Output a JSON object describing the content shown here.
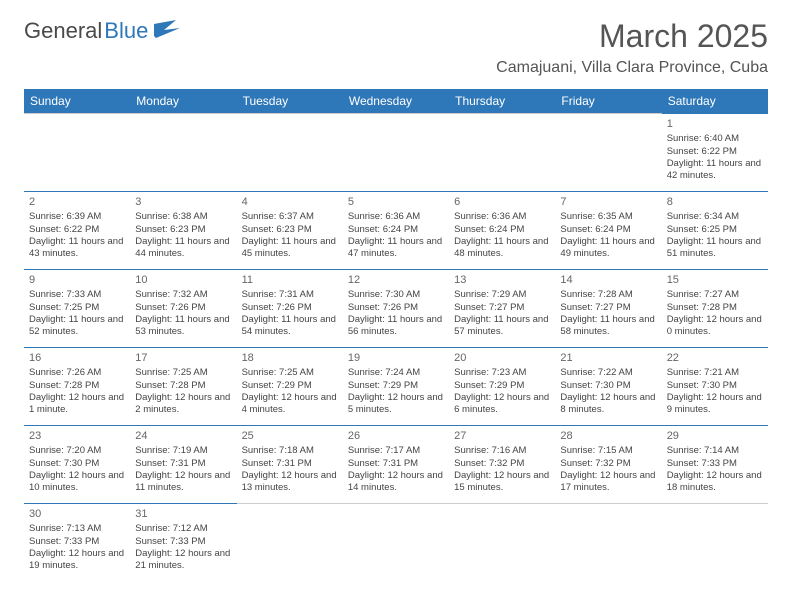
{
  "logo": {
    "text1": "General",
    "text2": "Blue"
  },
  "title": "March 2025",
  "location": "Camajuani, Villa Clara Province, Cuba",
  "dow": [
    "Sunday",
    "Monday",
    "Tuesday",
    "Wednesday",
    "Thursday",
    "Friday",
    "Saturday"
  ],
  "colors": {
    "header_bg": "#2e77b8",
    "header_text": "#ffffff",
    "border": "#2e77b8"
  },
  "weeks": [
    [
      null,
      null,
      null,
      null,
      null,
      null,
      {
        "n": "1",
        "sr": "Sunrise: 6:40 AM",
        "ss": "Sunset: 6:22 PM",
        "dl": "Daylight: 11 hours and 42 minutes."
      }
    ],
    [
      {
        "n": "2",
        "sr": "Sunrise: 6:39 AM",
        "ss": "Sunset: 6:22 PM",
        "dl": "Daylight: 11 hours and 43 minutes."
      },
      {
        "n": "3",
        "sr": "Sunrise: 6:38 AM",
        "ss": "Sunset: 6:23 PM",
        "dl": "Daylight: 11 hours and 44 minutes."
      },
      {
        "n": "4",
        "sr": "Sunrise: 6:37 AM",
        "ss": "Sunset: 6:23 PM",
        "dl": "Daylight: 11 hours and 45 minutes."
      },
      {
        "n": "5",
        "sr": "Sunrise: 6:36 AM",
        "ss": "Sunset: 6:24 PM",
        "dl": "Daylight: 11 hours and 47 minutes."
      },
      {
        "n": "6",
        "sr": "Sunrise: 6:36 AM",
        "ss": "Sunset: 6:24 PM",
        "dl": "Daylight: 11 hours and 48 minutes."
      },
      {
        "n": "7",
        "sr": "Sunrise: 6:35 AM",
        "ss": "Sunset: 6:24 PM",
        "dl": "Daylight: 11 hours and 49 minutes."
      },
      {
        "n": "8",
        "sr": "Sunrise: 6:34 AM",
        "ss": "Sunset: 6:25 PM",
        "dl": "Daylight: 11 hours and 51 minutes."
      }
    ],
    [
      {
        "n": "9",
        "sr": "Sunrise: 7:33 AM",
        "ss": "Sunset: 7:25 PM",
        "dl": "Daylight: 11 hours and 52 minutes."
      },
      {
        "n": "10",
        "sr": "Sunrise: 7:32 AM",
        "ss": "Sunset: 7:26 PM",
        "dl": "Daylight: 11 hours and 53 minutes."
      },
      {
        "n": "11",
        "sr": "Sunrise: 7:31 AM",
        "ss": "Sunset: 7:26 PM",
        "dl": "Daylight: 11 hours and 54 minutes."
      },
      {
        "n": "12",
        "sr": "Sunrise: 7:30 AM",
        "ss": "Sunset: 7:26 PM",
        "dl": "Daylight: 11 hours and 56 minutes."
      },
      {
        "n": "13",
        "sr": "Sunrise: 7:29 AM",
        "ss": "Sunset: 7:27 PM",
        "dl": "Daylight: 11 hours and 57 minutes."
      },
      {
        "n": "14",
        "sr": "Sunrise: 7:28 AM",
        "ss": "Sunset: 7:27 PM",
        "dl": "Daylight: 11 hours and 58 minutes."
      },
      {
        "n": "15",
        "sr": "Sunrise: 7:27 AM",
        "ss": "Sunset: 7:28 PM",
        "dl": "Daylight: 12 hours and 0 minutes."
      }
    ],
    [
      {
        "n": "16",
        "sr": "Sunrise: 7:26 AM",
        "ss": "Sunset: 7:28 PM",
        "dl": "Daylight: 12 hours and 1 minute."
      },
      {
        "n": "17",
        "sr": "Sunrise: 7:25 AM",
        "ss": "Sunset: 7:28 PM",
        "dl": "Daylight: 12 hours and 2 minutes."
      },
      {
        "n": "18",
        "sr": "Sunrise: 7:25 AM",
        "ss": "Sunset: 7:29 PM",
        "dl": "Daylight: 12 hours and 4 minutes."
      },
      {
        "n": "19",
        "sr": "Sunrise: 7:24 AM",
        "ss": "Sunset: 7:29 PM",
        "dl": "Daylight: 12 hours and 5 minutes."
      },
      {
        "n": "20",
        "sr": "Sunrise: 7:23 AM",
        "ss": "Sunset: 7:29 PM",
        "dl": "Daylight: 12 hours and 6 minutes."
      },
      {
        "n": "21",
        "sr": "Sunrise: 7:22 AM",
        "ss": "Sunset: 7:30 PM",
        "dl": "Daylight: 12 hours and 8 minutes."
      },
      {
        "n": "22",
        "sr": "Sunrise: 7:21 AM",
        "ss": "Sunset: 7:30 PM",
        "dl": "Daylight: 12 hours and 9 minutes."
      }
    ],
    [
      {
        "n": "23",
        "sr": "Sunrise: 7:20 AM",
        "ss": "Sunset: 7:30 PM",
        "dl": "Daylight: 12 hours and 10 minutes."
      },
      {
        "n": "24",
        "sr": "Sunrise: 7:19 AM",
        "ss": "Sunset: 7:31 PM",
        "dl": "Daylight: 12 hours and 11 minutes."
      },
      {
        "n": "25",
        "sr": "Sunrise: 7:18 AM",
        "ss": "Sunset: 7:31 PM",
        "dl": "Daylight: 12 hours and 13 minutes."
      },
      {
        "n": "26",
        "sr": "Sunrise: 7:17 AM",
        "ss": "Sunset: 7:31 PM",
        "dl": "Daylight: 12 hours and 14 minutes."
      },
      {
        "n": "27",
        "sr": "Sunrise: 7:16 AM",
        "ss": "Sunset: 7:32 PM",
        "dl": "Daylight: 12 hours and 15 minutes."
      },
      {
        "n": "28",
        "sr": "Sunrise: 7:15 AM",
        "ss": "Sunset: 7:32 PM",
        "dl": "Daylight: 12 hours and 17 minutes."
      },
      {
        "n": "29",
        "sr": "Sunrise: 7:14 AM",
        "ss": "Sunset: 7:33 PM",
        "dl": "Daylight: 12 hours and 18 minutes."
      }
    ],
    [
      {
        "n": "30",
        "sr": "Sunrise: 7:13 AM",
        "ss": "Sunset: 7:33 PM",
        "dl": "Daylight: 12 hours and 19 minutes."
      },
      {
        "n": "31",
        "sr": "Sunrise: 7:12 AM",
        "ss": "Sunset: 7:33 PM",
        "dl": "Daylight: 12 hours and 21 minutes."
      },
      null,
      null,
      null,
      null,
      null
    ]
  ]
}
